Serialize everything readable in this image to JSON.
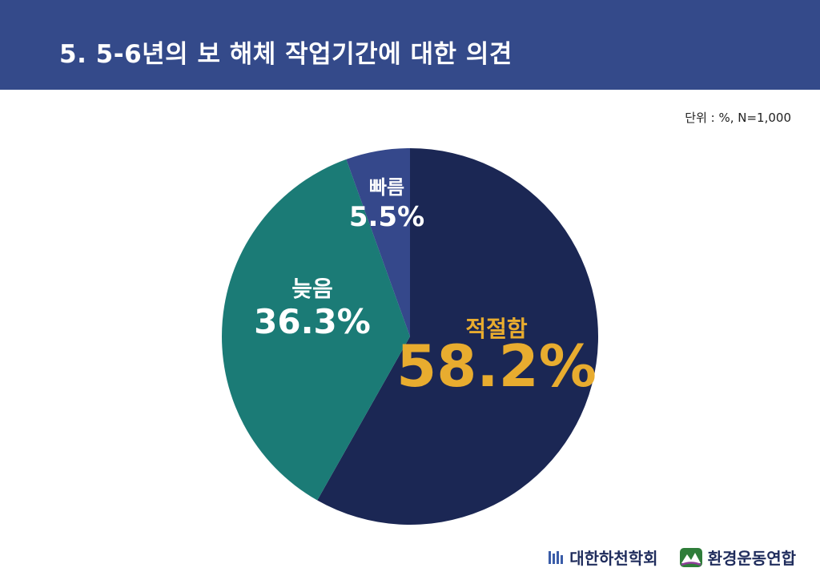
{
  "header": {
    "title": "5. 5-6년의 보 해체 작업기간에 대한 의견"
  },
  "unit_note": "단위 : %, N=1,000",
  "colors": {
    "header_bg": "#344a8a",
    "appropriate": "#1b2754",
    "slow": "#1b7b76",
    "fast": "#35488b",
    "highlight_text": "#e8ac2f",
    "label_text": "#ffffff"
  },
  "chart_data": {
    "type": "pie",
    "title": "",
    "slices": [
      {
        "label": "적절함",
        "value": 58.2,
        "value_label": "58.2%",
        "color": "#1b2754"
      },
      {
        "label": "늦음",
        "value": 36.3,
        "value_label": "36.3%",
        "color": "#1b7b76"
      },
      {
        "label": "빠름",
        "value": 5.5,
        "value_label": "5.5%",
        "color": "#35488b"
      }
    ],
    "start_angle": "12 o'clock",
    "direction": "clockwise"
  },
  "footer": {
    "logo1_text": "대한하천학회",
    "logo1_icon": "river-society-emblem-icon",
    "logo2_text": "환경운동연합",
    "logo2_icon": "kfem-mountain-emblem-icon"
  }
}
